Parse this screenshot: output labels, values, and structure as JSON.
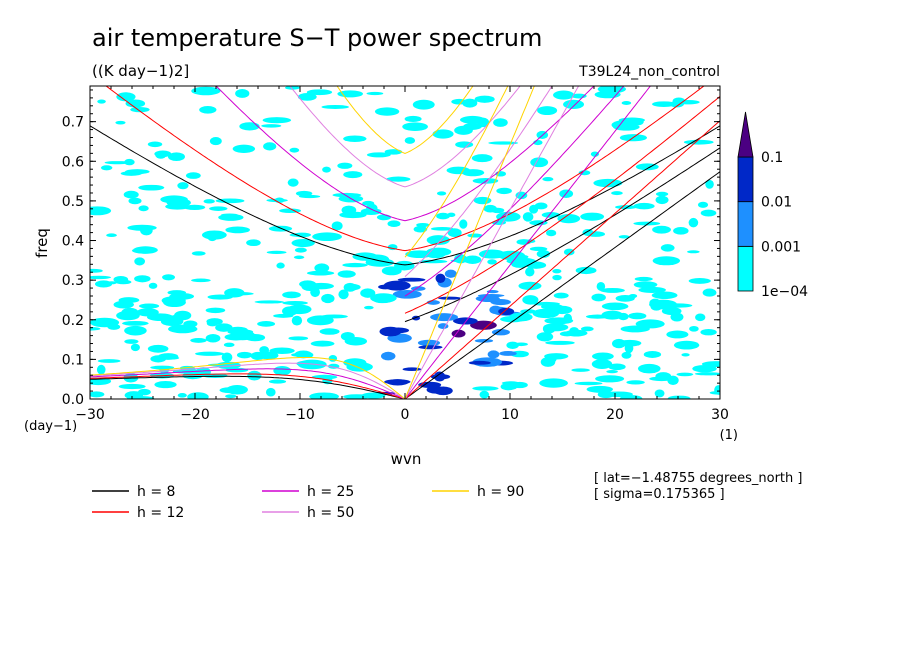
{
  "chart_data": {
    "type": "heatmap",
    "title": "air temperature S−T power spectrum",
    "units": "((K day−1)2]",
    "experiment": "T39L24_non_control",
    "xlabel": "wvn",
    "ylabel": "freq",
    "x_unit_label": "(1)",
    "y_unit_label": "(day−1)",
    "xlim": [
      -30,
      30
    ],
    "ylim": [
      0,
      0.79
    ],
    "x_ticks": [
      -30,
      -20,
      -10,
      0,
      10,
      20,
      30
    ],
    "x_tick_labels": [
      "−30",
      "−20",
      "−10",
      "0",
      "10",
      "20",
      "30"
    ],
    "y_ticks": [
      0,
      0.1,
      0.2,
      0.3,
      0.4,
      0.5,
      0.6,
      0.7
    ],
    "y_tick_labels": [
      "0.0",
      "0.1",
      "0.2",
      "0.3",
      "0.4",
      "0.5",
      "0.6",
      "0.7"
    ],
    "colorbar": {
      "levels": [
        0.0001,
        0.001,
        0.01,
        0.1
      ],
      "labels": [
        "1e−04",
        "0.001",
        "0.01",
        "0.1"
      ],
      "colors": [
        "#00ffff",
        "#1e90ff",
        "#0028c8",
        "#4b0082"
      ]
    },
    "dispersion_curves": [
      {
        "name": "h =  8",
        "h": 8,
        "color": "#000000"
      },
      {
        "name": "h = 12",
        "h": 12,
        "color": "#ff0000"
      },
      {
        "name": "h = 25",
        "h": 25,
        "color": "#d000d0"
      },
      {
        "name": "h = 50",
        "h": 50,
        "color": "#e080e0"
      },
      {
        "name": "h = 90",
        "h": 90,
        "color": "#ffd400"
      }
    ],
    "annotations": [
      "[ lat=−1.48755 degrees_north ]",
      "[ sigma=0.175365 ]"
    ]
  }
}
